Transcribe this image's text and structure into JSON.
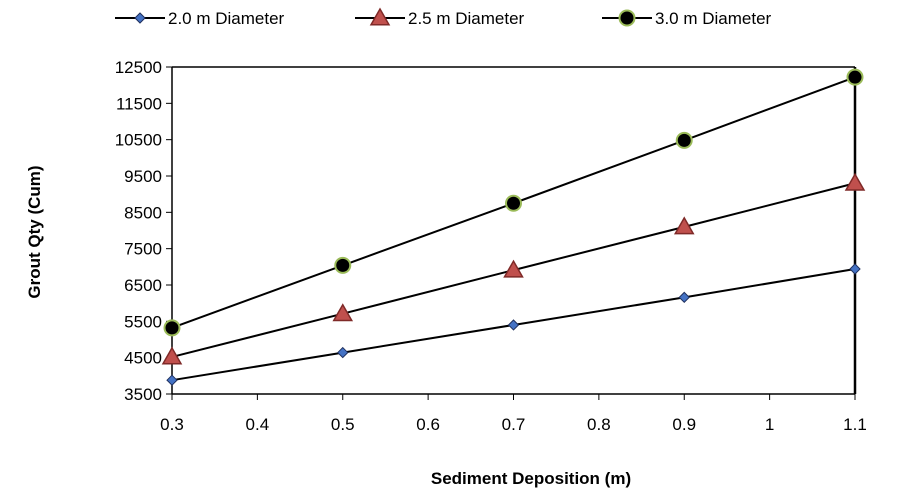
{
  "chart_data": {
    "type": "line",
    "title": "",
    "xlabel": "Sediment Deposition (m)",
    "ylabel": "Grout Qty (Cum)",
    "xlim": [
      0.3,
      1.1
    ],
    "ylim": [
      3500,
      12500
    ],
    "x_ticks": [
      0.3,
      0.4,
      0.5,
      0.6,
      0.7,
      0.8,
      0.9,
      1,
      1.1
    ],
    "x_tick_labels": [
      "0.3",
      "0.4",
      "0.5",
      "0.6",
      "0.7",
      "0.8",
      "0.9",
      "1",
      "1.1"
    ],
    "y_ticks": [
      3500,
      4500,
      5500,
      6500,
      7500,
      8500,
      9500,
      10500,
      11500,
      12500
    ],
    "y_tick_labels": [
      "3500",
      "4500",
      "5500",
      "6500",
      "7500",
      "8500",
      "9500",
      "10500",
      "11500",
      "12500"
    ],
    "grid": false,
    "legend_position": "top",
    "x": [
      0.3,
      0.5,
      0.7,
      0.9,
      1.1
    ],
    "series": [
      {
        "name": "2.0 m Diameter",
        "marker": "diamond",
        "marker_fill": "#4472c4",
        "marker_stroke": "#1f2f5c",
        "line_color": "#000000",
        "values": [
          3880,
          4640,
          5400,
          6160,
          6940
        ]
      },
      {
        "name": "2.5 m Diameter",
        "marker": "triangle",
        "marker_fill": "#c0504d",
        "marker_stroke": "#7f2a28",
        "line_color": "#000000",
        "values": [
          4520,
          5710,
          6910,
          8100,
          9300
        ]
      },
      {
        "name": "3.0 m Diameter",
        "marker": "circle",
        "marker_fill": "#000000",
        "marker_stroke": "#9bbb59",
        "line_color": "#000000",
        "values": [
          5320,
          7040,
          8750,
          10480,
          12220
        ]
      }
    ]
  }
}
